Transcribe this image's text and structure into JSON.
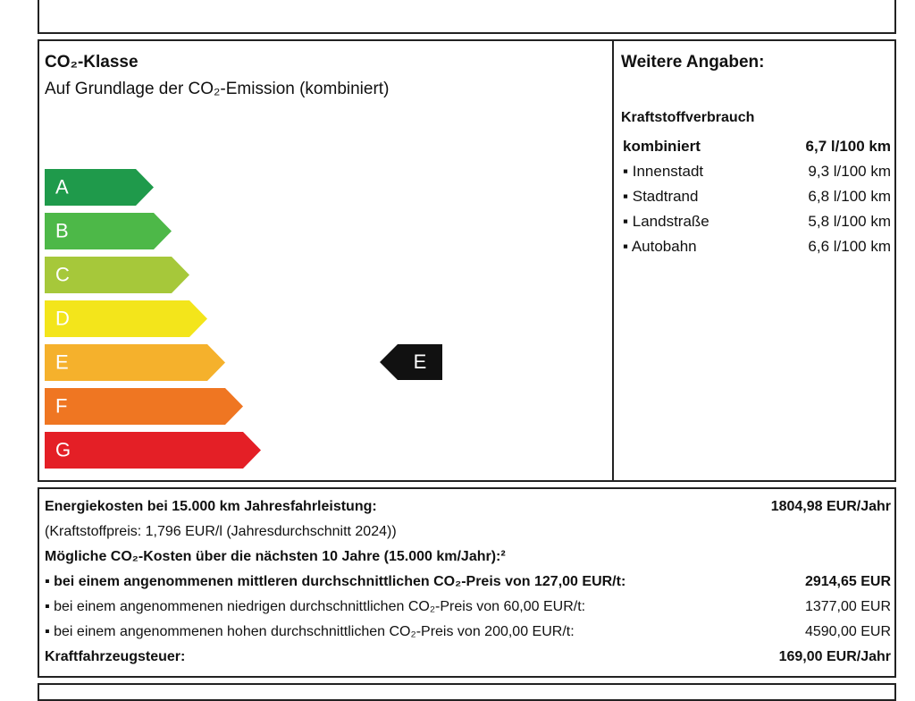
{
  "co2_class": {
    "title": "CO₂-Klasse",
    "subtitle": "Auf Grundlage der CO₂-Emission (kombiniert)",
    "classes": [
      "A",
      "B",
      "C",
      "D",
      "E",
      "F",
      "G"
    ],
    "current": "E"
  },
  "further": {
    "title": "Weitere Angaben:",
    "consumption_title": "Kraftstoffverbrauch",
    "rows": [
      [
        "kombiniert",
        "6,7 l/100 km"
      ],
      [
        "Innenstadt",
        "9,3 l/100 km"
      ],
      [
        "Stadtrand",
        "6,8 l/100 km"
      ],
      [
        "Landstraße",
        "5,8 l/100 km"
      ],
      [
        "Autobahn",
        "6,6 l/100 km"
      ]
    ]
  },
  "costs": {
    "rows": [
      [
        "Energiekosten bei 15.000 km Jahresfahrleistung:",
        "1804,98 EUR/Jahr"
      ],
      [
        "(Kraftstoffpreis: 1,796 EUR/l (Jahresdurchschnitt 2024))"
      ],
      [
        "Mögliche CO₂-Kosten über die nächsten 10 Jahre (15.000 km/Jahr):²"
      ],
      [
        "bei einem angenommenen mittleren durchschnittlichen CO₂-Preis von 127,00 EUR/t:",
        "2914,65 EUR"
      ],
      [
        "bei einem angenommenen niedrigen durchschnittlichen CO₂-Preis von 60,00 EUR/t:",
        "1377,00 EUR"
      ],
      [
        "bei einem angenommenen hohen durchschnittlichen CO₂-Preis von 200,00 EUR/t:",
        "4590,00 EUR"
      ],
      [
        "Kraftfahrzeugsteuer:",
        "169,00 EUR/Jahr"
      ]
    ]
  }
}
